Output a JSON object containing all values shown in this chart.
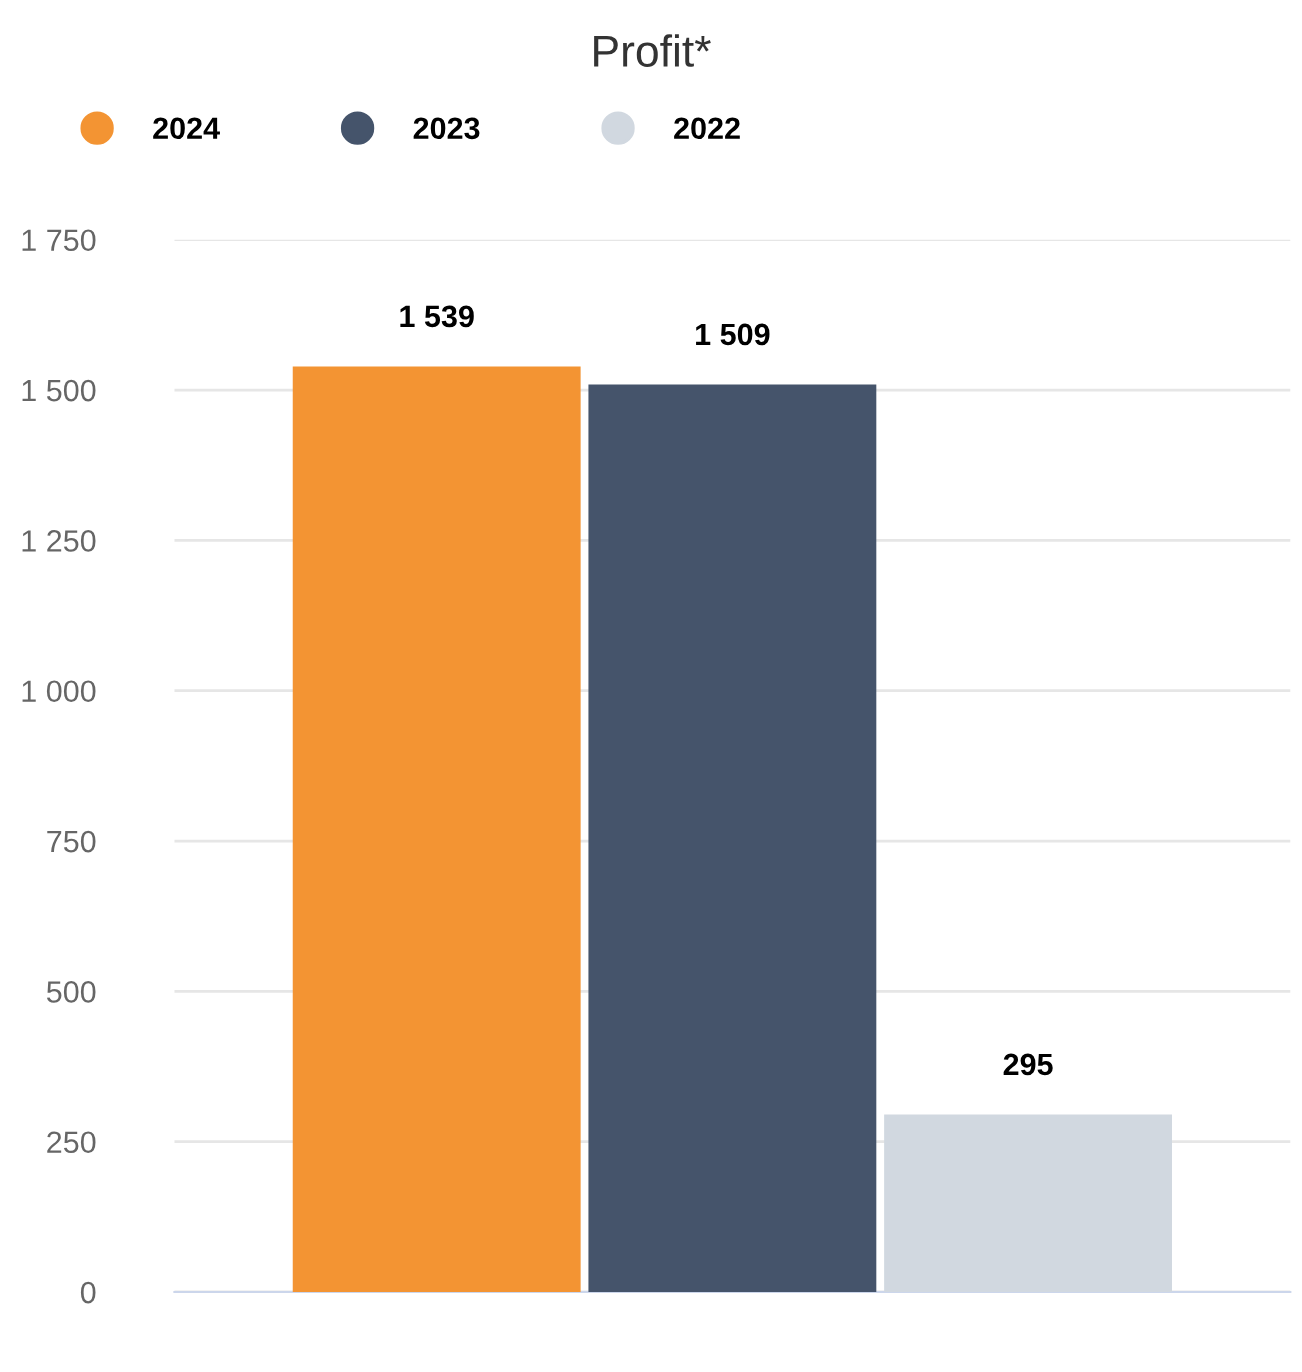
{
  "chart_data": {
    "type": "bar",
    "title": "Profit*",
    "categories": [
      null
    ],
    "series": [
      {
        "name": "2024",
        "color": "#f39433",
        "values": [
          1539
        ]
      },
      {
        "name": "2023",
        "color": "#45546b",
        "values": [
          1509
        ]
      },
      {
        "name": "2022",
        "color": "#d1d8e0",
        "values": [
          295
        ]
      }
    ],
    "ylim": [
      0,
      1750
    ],
    "yticks": [
      0,
      250,
      500,
      750,
      {
        "value": 1000,
        "label": "1 000"
      },
      {
        "value": 1250,
        "label": "1 250"
      },
      {
        "value": 1500,
        "label": "1 500"
      },
      {
        "value": 1750,
        "label": "1 750"
      }
    ],
    "value_labels": [
      [
        "1 539"
      ],
      [
        "1 509"
      ],
      [
        "295"
      ]
    ],
    "grid": "y",
    "legend": "top left"
  }
}
